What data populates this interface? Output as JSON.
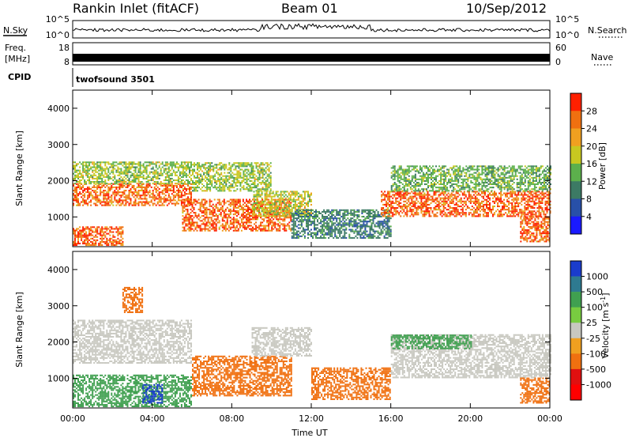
{
  "header": {
    "title": "Rankin Inlet (fitACF)",
    "beam": "Beam 01",
    "date": "10/Sep/2012"
  },
  "strips": {
    "nsky": {
      "label": "N.Sky",
      "ticks": [
        "10^5",
        "10^0"
      ]
    },
    "nsearch": {
      "label": "N.Search"
    },
    "freq": {
      "label_line1": "Freq.",
      "label_line2": "[MHz]",
      "ticks": [
        "18",
        "8"
      ]
    },
    "nave": {
      "label": "Nave",
      "ticks": [
        "60",
        "0"
      ]
    },
    "cpid": {
      "label": "CPID",
      "value": "twofsound 3501"
    }
  },
  "chart_data": [
    {
      "type": "heatmap",
      "name": "power",
      "xlabel": "Time UT",
      "ylabel": "Slant Range [km]",
      "x_ticks": [
        "00:00",
        "04:00",
        "08:00",
        "12:00",
        "16:00",
        "20:00",
        "00:00"
      ],
      "y_ticks": [
        1000,
        2000,
        3000,
        4000
      ],
      "xlim_hours": [
        0,
        24
      ],
      "ylim_km": [
        180,
        4500
      ],
      "colorbar": {
        "label": "Power [dB]",
        "ticks": [
          "28",
          "24",
          "20",
          "16",
          "12",
          "8",
          "4"
        ],
        "levels": [
          0,
          4,
          8,
          12,
          16,
          20,
          24,
          28,
          32
        ],
        "colors": [
          "#1a1aff",
          "#2850a8",
          "#3c7a64",
          "#5cb04c",
          "#c8c820",
          "#f0a020",
          "#f07010",
          "#ff2000"
        ]
      },
      "regions": [
        {
          "t0": 0,
          "t1": 6,
          "r0": 1300,
          "r1": 1900,
          "level": 26
        },
        {
          "t0": 0,
          "t1": 6,
          "r0": 1900,
          "r1": 2500,
          "level": 16
        },
        {
          "t0": 0,
          "t1": 2.5,
          "r0": 200,
          "r1": 700,
          "level": 27
        },
        {
          "t0": 5.5,
          "t1": 11,
          "r0": 600,
          "r1": 1500,
          "level": 27
        },
        {
          "t0": 6,
          "t1": 10,
          "r0": 1700,
          "r1": 2500,
          "level": 16
        },
        {
          "t0": 9,
          "t1": 12,
          "r0": 1000,
          "r1": 1700,
          "level": 18
        },
        {
          "t0": 11,
          "t1": 16,
          "r0": 400,
          "r1": 1200,
          "level": 10
        },
        {
          "t0": 15.5,
          "t1": 24,
          "r0": 1000,
          "r1": 1700,
          "level": 27
        },
        {
          "t0": 16,
          "t1": 24,
          "r0": 1700,
          "r1": 2400,
          "level": 14
        },
        {
          "t0": 22.5,
          "t1": 24,
          "r0": 300,
          "r1": 1000,
          "level": 27
        }
      ]
    },
    {
      "type": "heatmap",
      "name": "velocity",
      "xlabel": "Time UT",
      "ylabel": "Slant Range [km]",
      "x_ticks": [
        "00:00",
        "04:00",
        "08:00",
        "12:00",
        "16:00",
        "20:00",
        "00:00"
      ],
      "y_ticks": [
        1000,
        2000,
        3000,
        4000
      ],
      "xlim_hours": [
        0,
        24
      ],
      "ylim_km": [
        180,
        4500
      ],
      "colorbar": {
        "label": "Velocity [m s-1]",
        "ticks": [
          "1000",
          "500",
          "100",
          "25",
          "-25",
          "-100",
          "-500",
          "-1000"
        ],
        "levels": [
          1200,
          1000,
          500,
          100,
          25,
          -25,
          -100,
          -500,
          -1000,
          -1200
        ],
        "colors": [
          "#1a3ccc",
          "#2e7a90",
          "#40a050",
          "#78cc40",
          "#c8c8c0",
          "#f0a020",
          "#f07010",
          "#e01010",
          "#ff0000"
        ]
      },
      "regions": [
        {
          "t0": 0,
          "t1": 6,
          "r0": 1400,
          "r1": 2600,
          "level": 0
        },
        {
          "t0": 0,
          "t1": 6,
          "r0": 200,
          "r1": 1100,
          "level": 150
        },
        {
          "t0": 2.5,
          "t1": 3.5,
          "r0": 2800,
          "r1": 3500,
          "level": -150
        },
        {
          "t0": 3.5,
          "t1": 4.5,
          "r0": 300,
          "r1": 800,
          "level": 1100
        },
        {
          "t0": 6,
          "t1": 11,
          "r0": 500,
          "r1": 1600,
          "level": -200
        },
        {
          "t0": 9,
          "t1": 12,
          "r0": 1600,
          "r1": 2400,
          "level": 0
        },
        {
          "t0": 12,
          "t1": 16,
          "r0": 400,
          "r1": 1300,
          "level": -200
        },
        {
          "t0": 16,
          "t1": 24,
          "r0": 1000,
          "r1": 2200,
          "level": 0
        },
        {
          "t0": 16,
          "t1": 20,
          "r0": 1800,
          "r1": 2200,
          "level": 300
        },
        {
          "t0": 22.5,
          "t1": 24,
          "r0": 300,
          "r1": 1000,
          "level": -300
        }
      ]
    }
  ]
}
